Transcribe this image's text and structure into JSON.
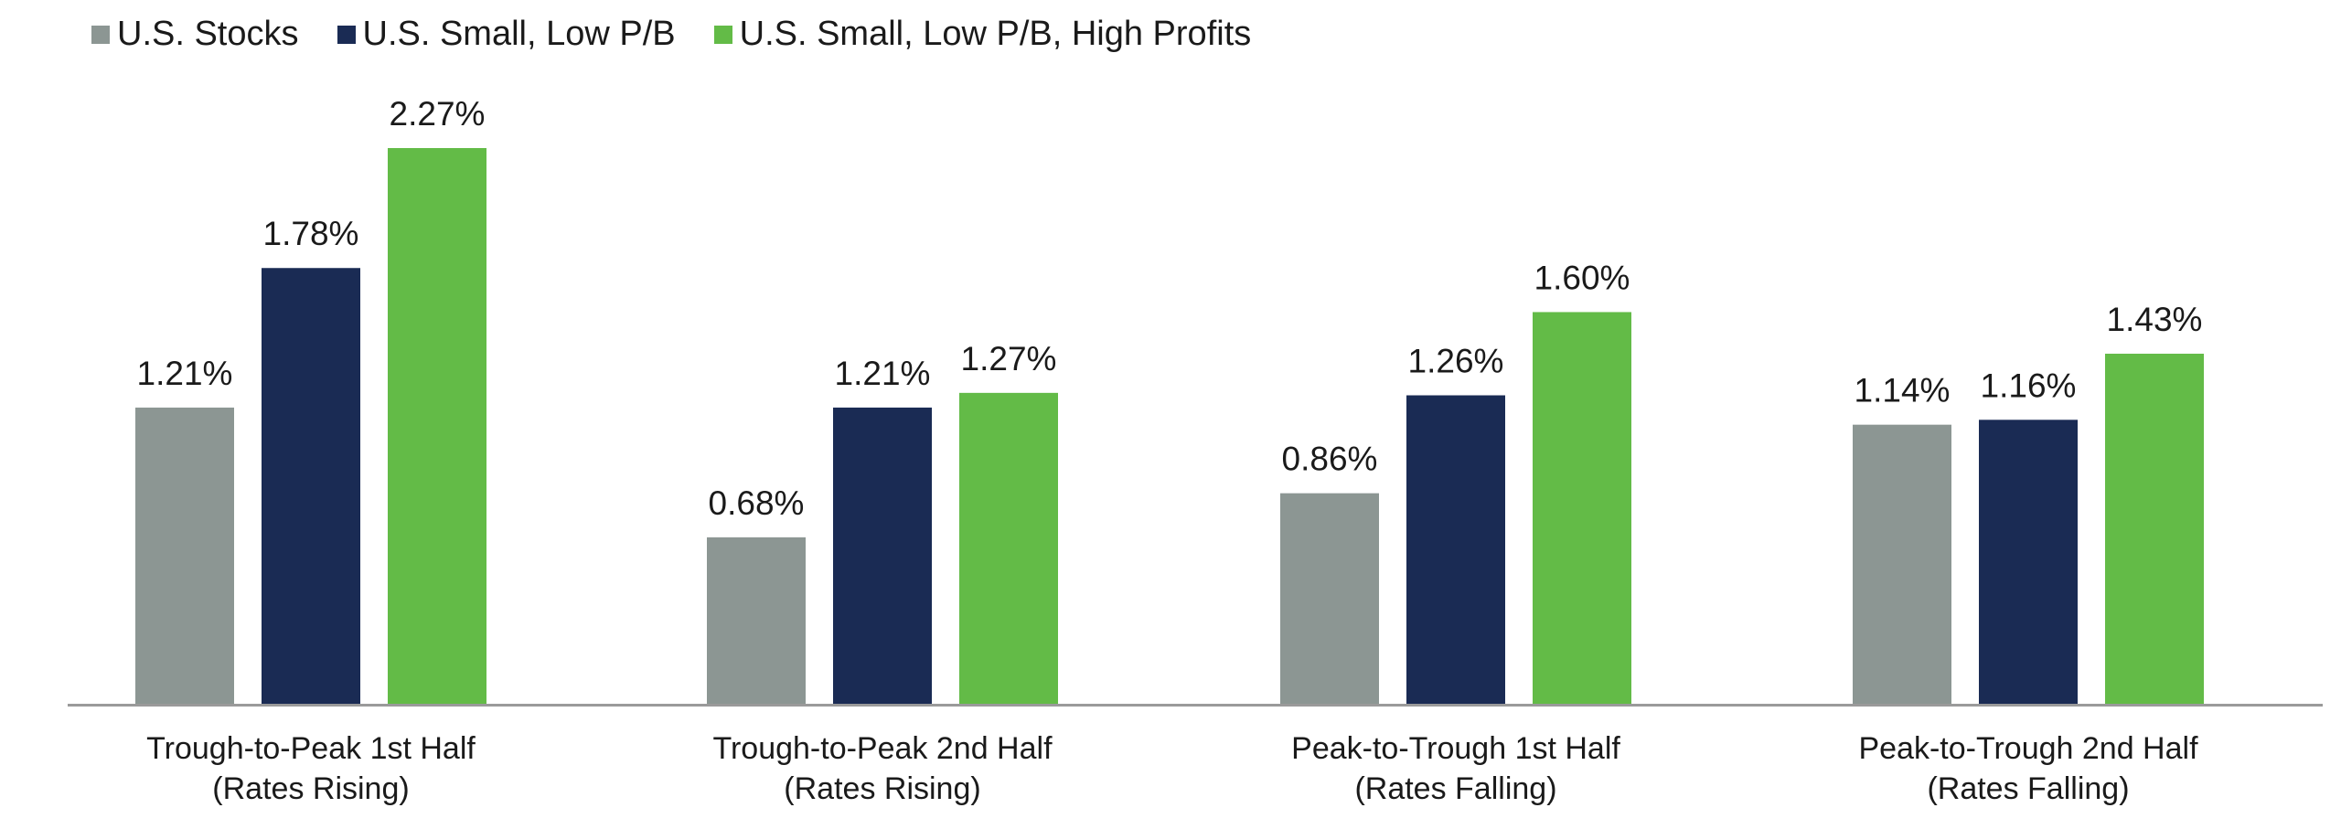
{
  "chart_data": {
    "type": "bar",
    "categories": [
      [
        "Trough-to-Peak 1st Half",
        "(Rates Rising)"
      ],
      [
        "Trough-to-Peak 2nd Half",
        "(Rates Rising)"
      ],
      [
        "Peak-to-Trough 1st Half",
        "(Rates Falling)"
      ],
      [
        "Peak-to-Trough 2nd Half",
        "(Rates Falling)"
      ]
    ],
    "series": [
      {
        "name": "U.S. Stocks",
        "color": "#8c9693",
        "values": [
          1.21,
          0.68,
          0.86,
          1.14
        ],
        "labels": [
          "1.21%",
          "0.68%",
          "0.86%",
          "1.14%"
        ]
      },
      {
        "name": "U.S. Small, Low P/B",
        "color": "#1a2b54",
        "values": [
          1.78,
          1.21,
          1.26,
          1.16
        ],
        "labels": [
          "1.78%",
          "1.21%",
          "1.26%",
          "1.16%"
        ]
      },
      {
        "name": "U.S. Small, Low P/B, High Profits",
        "color": "#63bb47",
        "values": [
          2.27,
          1.27,
          1.6,
          1.43
        ],
        "labels": [
          "2.27%",
          "1.27%",
          "1.60%",
          "1.43%"
        ]
      }
    ],
    "ylim": [
      0,
      2.27
    ],
    "grid": false,
    "legend_position": "top-left",
    "axis_color": "#9a9a9a"
  }
}
